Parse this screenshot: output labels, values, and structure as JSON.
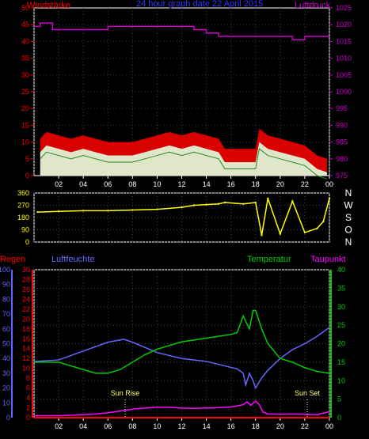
{
  "title": "24 hour graph date  22 April 2015",
  "colors": {
    "wind": "#ff0000",
    "gust_bg": "#ffffff",
    "avg": "#ccffcc",
    "pressure": "#cc00cc",
    "direction": "#ffff00",
    "rain": "#ff0000",
    "humidity": "#6666ff",
    "temperature": "#00cc00",
    "dewpoint": "#ff00ff",
    "grid": "#ffffff",
    "axis_text": "#ffffff"
  },
  "x_ticks": [
    "02",
    "04",
    "06",
    "08",
    "10",
    "12",
    "14",
    "16",
    "18",
    "20",
    "22",
    "00"
  ],
  "chart_data": [
    {
      "type": "line",
      "panel": "wind_pressure",
      "left_label": "Windstärke",
      "right_label": "Luftdruck",
      "left_ticks": [
        "0",
        "5",
        "10",
        "15",
        "20",
        "25",
        "30",
        "35",
        "40",
        "45",
        "50"
      ],
      "right_ticks": [
        "975",
        "980",
        "985",
        "990",
        "995",
        "1000",
        "1005",
        "1010",
        "1015",
        "1020",
        "1025"
      ],
      "ylim_left": [
        0,
        50
      ],
      "ylim_right": [
        975,
        1025
      ],
      "series": [
        {
          "key": "wind",
          "x": [
            0.5,
            1,
            2,
            3,
            4,
            5,
            6,
            7,
            8,
            9,
            10,
            11,
            12,
            13,
            14,
            15,
            15.5,
            17,
            18,
            18.3,
            19,
            20,
            21,
            22,
            23,
            23.8
          ],
          "y": [
            7,
            9,
            8,
            7,
            8,
            7,
            6,
            6,
            6,
            7,
            8,
            9,
            8,
            9,
            8,
            7,
            4,
            4,
            4,
            10,
            8,
            7,
            6,
            5,
            2,
            1
          ]
        },
        {
          "key": "pressure",
          "x": [
            0,
            0.5,
            1.5,
            3,
            5,
            6,
            8,
            10,
            12,
            13,
            14,
            15,
            16,
            18,
            20,
            21,
            22,
            23,
            24
          ],
          "y": [
            1019.5,
            1020.5,
            1018.5,
            1018.5,
            1018.5,
            1019.5,
            1019.5,
            1019.5,
            1019.5,
            1018.5,
            1017.5,
            1016.5,
            1016.5,
            1016.5,
            1016.5,
            1015.5,
            1016.5,
            1016.5,
            1016.5
          ]
        }
      ]
    },
    {
      "type": "scatter",
      "panel": "wind_direction",
      "left_ticks": [
        "0",
        "90",
        "180",
        "270",
        "360"
      ],
      "right_ticks": [
        "N",
        "W",
        "S",
        "O",
        "N"
      ],
      "ylim": [
        0,
        360
      ],
      "series": [
        {
          "key": "direction",
          "x": [
            0.3,
            2,
            4,
            6,
            8,
            10,
            12,
            13,
            14,
            15,
            15.5,
            17,
            18,
            18.5,
            19,
            20,
            21,
            22,
            23,
            23.5,
            24
          ],
          "y": [
            220,
            225,
            230,
            230,
            235,
            240,
            255,
            270,
            275,
            280,
            290,
            280,
            290,
            50,
            320,
            60,
            300,
            70,
            100,
            150,
            320
          ]
        }
      ]
    },
    {
      "type": "line",
      "panel": "temp_humidity",
      "labels": {
        "rain": "Regen",
        "humidity": "Luftfeuchte",
        "temperature": "Temperatur",
        "dewpoint": "Taupunkt"
      },
      "rain_ticks": [
        "0",
        "2",
        "4",
        "6",
        "8",
        "10",
        "12",
        "14",
        "16",
        "18",
        "20",
        "22",
        "24",
        "26",
        "28",
        "30"
      ],
      "humidity_ticks": [
        "0",
        "10",
        "20",
        "30",
        "40",
        "50",
        "60",
        "70",
        "80",
        "90",
        "100"
      ],
      "temp_ticks": [
        "0",
        "5",
        "10",
        "15",
        "20",
        "25",
        "30",
        "35",
        "40"
      ],
      "annotations": [
        {
          "text": "Sun Rise",
          "x": 7.4
        },
        {
          "text": "Sun Set",
          "x": 22.2
        }
      ],
      "series": [
        {
          "key": "humidity",
          "x": [
            0,
            2,
            4,
            6,
            7.3,
            8,
            10,
            12,
            14,
            15,
            16.5,
            17,
            17.2,
            17.5,
            17.8,
            18,
            18.5,
            19,
            20,
            21,
            22,
            23,
            24
          ],
          "y": [
            38,
            39,
            45,
            51,
            53,
            51,
            44,
            40,
            38,
            36,
            33,
            30,
            22,
            30,
            25,
            20,
            27,
            32,
            40,
            46,
            50,
            55,
            61
          ]
        },
        {
          "key": "temperature",
          "x": [
            0,
            1,
            2,
            3,
            4,
            5,
            6,
            7,
            8,
            9,
            10,
            11,
            12,
            13,
            14,
            15,
            16,
            16.5,
            17,
            17.2,
            17.5,
            17.8,
            18,
            18.5,
            19,
            20,
            21,
            22,
            23,
            24
          ],
          "y": [
            15,
            15,
            15,
            14,
            13,
            12,
            12,
            13,
            15,
            17,
            18.5,
            19.5,
            20.5,
            21,
            21.5,
            22,
            22.5,
            23,
            27.5,
            26,
            24,
            29,
            29,
            24,
            20,
            16,
            15,
            13.5,
            12.5,
            12
          ]
        },
        {
          "key": "dewpoint",
          "x": [
            0,
            2,
            4,
            5,
            6,
            7,
            8,
            9,
            10,
            11,
            12,
            13,
            14,
            15,
            16,
            17,
            17.3,
            17.6,
            18,
            18.3,
            18.6,
            19,
            20,
            21,
            22,
            23,
            24
          ],
          "y": [
            0.5,
            0.5,
            0.8,
            1,
            1.3,
            1.8,
            2.3,
            2.6,
            2.8,
            2.8,
            2.6,
            2.5,
            2.6,
            2.7,
            2.9,
            3.5,
            4.3,
            3.3,
            4.5,
            3.5,
            1.5,
            1,
            0.9,
            1,
            0.9,
            0.8,
            1.6
          ]
        },
        {
          "key": "rain",
          "x": [
            0,
            24
          ],
          "y": [
            0,
            0
          ]
        }
      ]
    }
  ]
}
